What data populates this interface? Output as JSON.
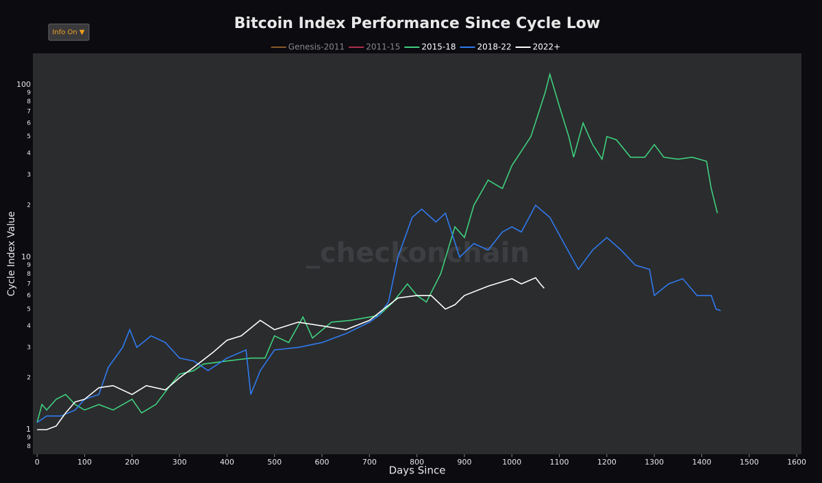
{
  "ui": {
    "button": "Info On ▼"
  },
  "chart_data": {
    "type": "line",
    "title": "Bitcoin Index Performance Since Cycle Low",
    "xlabel": "Days Since",
    "ylabel": "Cycle Index Value",
    "watermark": "_checkonchain",
    "log_y": true,
    "grid": false,
    "legend": "top",
    "xlim": [
      -9,
      1610
    ],
    "xticks": [
      0,
      100,
      200,
      300,
      400,
      500,
      600,
      700,
      800,
      900,
      1000,
      1100,
      1200,
      1300,
      1400,
      1500,
      1600
    ],
    "ylim": [
      0.72,
      152
    ],
    "yticks": [
      {
        "value": 0.8,
        "label": "8"
      },
      {
        "value": 0.9,
        "label": "9"
      },
      1,
      2,
      3,
      4,
      5,
      6,
      7,
      8,
      9,
      10,
      {
        "value": 20,
        "label": "2"
      },
      {
        "value": 30,
        "label": "3"
      },
      {
        "value": 40,
        "label": "4"
      },
      {
        "value": 50,
        "label": "5"
      },
      {
        "value": 60,
        "label": "6"
      },
      {
        "value": 70,
        "label": "7"
      },
      {
        "value": 80,
        "label": "8"
      },
      {
        "value": 90,
        "label": "9"
      },
      100
    ],
    "series": [
      {
        "name": "Genesis-2011",
        "color": "#8a5a2b",
        "visible": false,
        "x": [],
        "values": []
      },
      {
        "name": "2011-15",
        "color": "#b03050",
        "visible": false,
        "x": [],
        "values": []
      },
      {
        "name": "2015-18",
        "color": "#3fd17f",
        "visible": true,
        "x": [
          0,
          10,
          20,
          40,
          60,
          80,
          100,
          130,
          160,
          200,
          220,
          250,
          280,
          300,
          330,
          350,
          400,
          450,
          480,
          500,
          530,
          560,
          580,
          620,
          660,
          700,
          720,
          750,
          780,
          800,
          820,
          850,
          880,
          900,
          920,
          950,
          980,
          1000,
          1040,
          1070,
          1080,
          1100,
          1120,
          1130,
          1150,
          1170,
          1190,
          1200,
          1220,
          1250,
          1280,
          1300,
          1320,
          1350,
          1380,
          1410,
          1420,
          1433
        ],
        "values": [
          1.1,
          1.4,
          1.3,
          1.5,
          1.6,
          1.4,
          1.3,
          1.4,
          1.3,
          1.5,
          1.25,
          1.4,
          1.8,
          2.1,
          2.2,
          2.4,
          2.5,
          2.6,
          2.6,
          3.5,
          3.2,
          4.5,
          3.4,
          4.2,
          4.3,
          4.5,
          4.6,
          5.5,
          7.0,
          6.0,
          5.5,
          8,
          15,
          13,
          20,
          28,
          25,
          34,
          50,
          90,
          115,
          75,
          50,
          38,
          60,
          45,
          37,
          50,
          48,
          38,
          38,
          45,
          38,
          37,
          38,
          36,
          25,
          18
        ]
      },
      {
        "name": "2018-22",
        "color": "#2f7bf0",
        "visible": true,
        "x": [
          0,
          20,
          50,
          80,
          100,
          130,
          150,
          180,
          195,
          210,
          240,
          270,
          300,
          330,
          360,
          400,
          440,
          450,
          470,
          500,
          550,
          600,
          650,
          700,
          720,
          740,
          760,
          790,
          810,
          840,
          860,
          890,
          920,
          950,
          980,
          1000,
          1020,
          1050,
          1080,
          1110,
          1140,
          1170,
          1200,
          1230,
          1260,
          1290,
          1300,
          1330,
          1360,
          1390,
          1420,
          1430,
          1440
        ],
        "values": [
          1.1,
          1.2,
          1.2,
          1.3,
          1.5,
          1.6,
          2.3,
          3.0,
          3.8,
          3.0,
          3.5,
          3.2,
          2.6,
          2.5,
          2.2,
          2.6,
          2.9,
          1.6,
          2.2,
          2.9,
          3.0,
          3.2,
          3.6,
          4.2,
          4.6,
          5.5,
          10,
          17,
          19,
          16,
          18,
          10,
          12,
          11,
          14,
          15,
          14,
          20,
          17,
          12,
          8.5,
          11,
          13,
          11,
          9,
          8.5,
          6,
          7,
          7.5,
          6,
          6,
          5,
          4.9
        ]
      },
      {
        "name": "2022+",
        "color": "#ffffff",
        "visible": true,
        "x": [
          0,
          20,
          40,
          60,
          80,
          100,
          130,
          160,
          200,
          230,
          270,
          300,
          330,
          370,
          400,
          430,
          470,
          500,
          550,
          600,
          650,
          700,
          730,
          760,
          800,
          830,
          860,
          880,
          900,
          950,
          980,
          1000,
          1020,
          1050,
          1060,
          1068
        ],
        "values": [
          1.0,
          1.0,
          1.05,
          1.25,
          1.45,
          1.5,
          1.75,
          1.8,
          1.6,
          1.8,
          1.7,
          2.0,
          2.3,
          2.8,
          3.3,
          3.5,
          4.3,
          3.8,
          4.2,
          4.0,
          3.8,
          4.3,
          5.0,
          5.8,
          6.0,
          6.0,
          5.0,
          5.3,
          6.0,
          6.8,
          7.2,
          7.5,
          7.0,
          7.6,
          7.0,
          6.6
        ]
      }
    ]
  }
}
